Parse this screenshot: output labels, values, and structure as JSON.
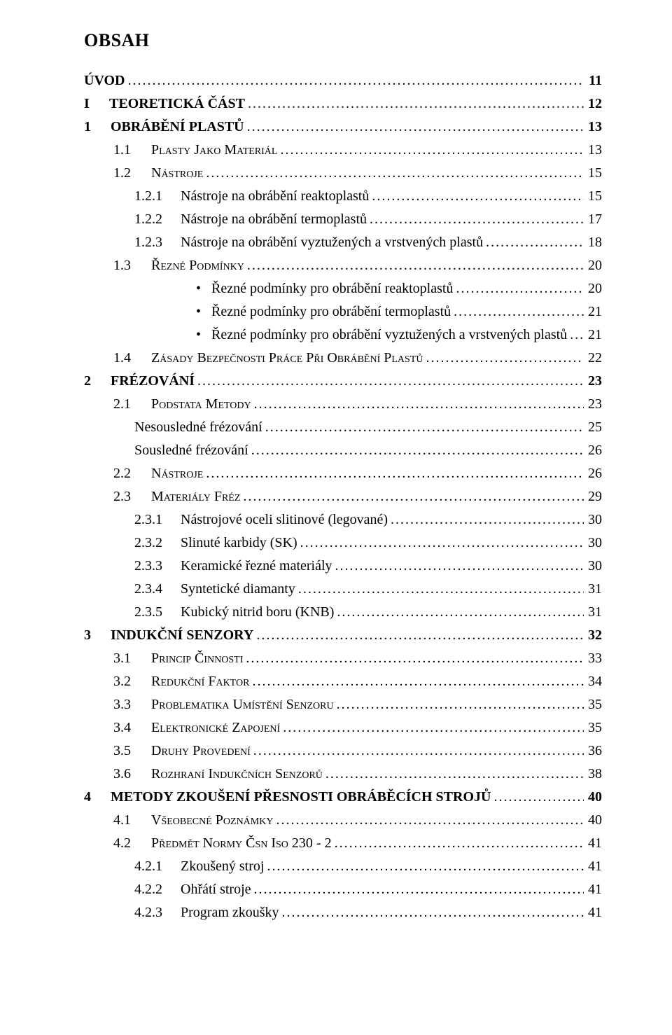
{
  "title": "OBSAH",
  "entries": [
    {
      "type": "row",
      "level": "lvl0 bold",
      "num": "",
      "text": "ÚVOD",
      "page": "11"
    },
    {
      "type": "part",
      "roman": "I",
      "text": "TEORETICKÁ ČÁST",
      "page": "12",
      "bold": true
    },
    {
      "type": "row",
      "level": "lvl1 bold",
      "num": "1",
      "text": "OBRÁBĚNÍ PLASTŮ",
      "page": "13"
    },
    {
      "type": "row",
      "level": "lvl2",
      "num": "1.1",
      "text_sc": "Plasty jako materiál",
      "page": "13"
    },
    {
      "type": "row",
      "level": "lvl2",
      "num": "1.2",
      "text_sc": "Nástroje",
      "page": "15"
    },
    {
      "type": "row",
      "level": "lvl3",
      "num": "1.2.1",
      "text": "Nástroje na obrábění reaktoplastů",
      "page": "15"
    },
    {
      "type": "row",
      "level": "lvl3",
      "num": "1.2.2",
      "text": "Nástroje na obrábění termoplastů",
      "page": "17"
    },
    {
      "type": "row",
      "level": "lvl3",
      "num": "1.2.3",
      "text": "Nástroje na obrábění vyztužených a vrstvených plastů",
      "page": "18"
    },
    {
      "type": "row",
      "level": "lvl2",
      "num": "1.3",
      "text_sc": "Řezné podmínky",
      "page": "20"
    },
    {
      "type": "bullet",
      "text": "Řezné podmínky pro obrábění reaktoplastů",
      "page": "20"
    },
    {
      "type": "bullet",
      "text": "Řezné podmínky pro obrábění termoplastů",
      "page": "21"
    },
    {
      "type": "bullet",
      "text": "Řezné podmínky pro obrábění vyztužených a vrstvených plastů",
      "page": "21"
    },
    {
      "type": "row",
      "level": "lvl2",
      "num": "1.4",
      "text_sc": "Zásady bezpečnosti práce při obrábění plastů",
      "page": "22"
    },
    {
      "type": "row",
      "level": "lvl1 bold",
      "num": "2",
      "text": "FRÉZOVÁNÍ",
      "page": "23"
    },
    {
      "type": "row",
      "level": "lvl2",
      "num": "2.1",
      "text_sc": "Podstata metody",
      "page": "23"
    },
    {
      "type": "row",
      "level": "sub-noid",
      "num": "",
      "text": "Nesousledné frézování",
      "page": "25"
    },
    {
      "type": "row",
      "level": "sub-noid",
      "num": "",
      "text": "Sousledné frézování",
      "page": "26"
    },
    {
      "type": "row",
      "level": "lvl2",
      "num": "2.2",
      "text_sc": "Nástroje",
      "page": "26"
    },
    {
      "type": "row",
      "level": "lvl2",
      "num": "2.3",
      "text_sc": "Materiály fréz",
      "page": "29"
    },
    {
      "type": "row",
      "level": "lvl3",
      "num": "2.3.1",
      "text": "Nástrojové oceli slitinové (legované)",
      "page": "30"
    },
    {
      "type": "row",
      "level": "lvl3",
      "num": "2.3.2",
      "text": "Slinuté karbidy (SK)",
      "page": "30"
    },
    {
      "type": "row",
      "level": "lvl3",
      "num": "2.3.3",
      "text": "Keramické řezné materiály",
      "page": "30"
    },
    {
      "type": "row",
      "level": "lvl3",
      "num": "2.3.4",
      "text": "Syntetické diamanty",
      "page": "31"
    },
    {
      "type": "row",
      "level": "lvl3",
      "num": "2.3.5",
      "text": "Kubický nitrid boru (KNB)",
      "page": "31"
    },
    {
      "type": "row",
      "level": "lvl1 bold",
      "num": "3",
      "text": "INDUKČNÍ SENZORY",
      "page": "32"
    },
    {
      "type": "row",
      "level": "lvl2",
      "num": "3.1",
      "text_sc": "Princip činnosti",
      "page": "33"
    },
    {
      "type": "row",
      "level": "lvl2",
      "num": "3.2",
      "text_sc": "Redukční faktor",
      "page": "34"
    },
    {
      "type": "row",
      "level": "lvl2",
      "num": "3.3",
      "text_sc": "Problematika umístění senzoru",
      "page": "35"
    },
    {
      "type": "row",
      "level": "lvl2",
      "num": "3.4",
      "text_sc": "Elektronické zapojení",
      "page": "35"
    },
    {
      "type": "row",
      "level": "lvl2",
      "num": "3.5",
      "text_sc": "Druhy provedení",
      "page": "36"
    },
    {
      "type": "row",
      "level": "lvl2",
      "num": "3.6",
      "text_sc": "Rozhraní indukčních senzorů",
      "page": "38"
    },
    {
      "type": "row",
      "level": "lvl1 bold",
      "num": "4",
      "text": "METODY ZKOUŠENÍ PŘESNOSTI OBRÁBĚCÍCH STROJŮ",
      "page": "40"
    },
    {
      "type": "row",
      "level": "lvl2",
      "num": "4.1",
      "text_sc": "Všeobecné poznámky",
      "page": "40"
    },
    {
      "type": "row",
      "level": "lvl2",
      "num": "4.2",
      "text_sc": "Předmět normy ČSN ISO 230 - 2",
      "page": "41"
    },
    {
      "type": "row",
      "level": "lvl3",
      "num": "4.2.1",
      "text": "Zkoušený stroj",
      "page": "41"
    },
    {
      "type": "row",
      "level": "lvl3",
      "num": "4.2.2",
      "text": "Ohřátí stroje",
      "page": "41"
    },
    {
      "type": "row",
      "level": "lvl3",
      "num": "4.2.3",
      "text": "Program zkoušky",
      "page": "41"
    }
  ],
  "bullet_glyph": "•"
}
